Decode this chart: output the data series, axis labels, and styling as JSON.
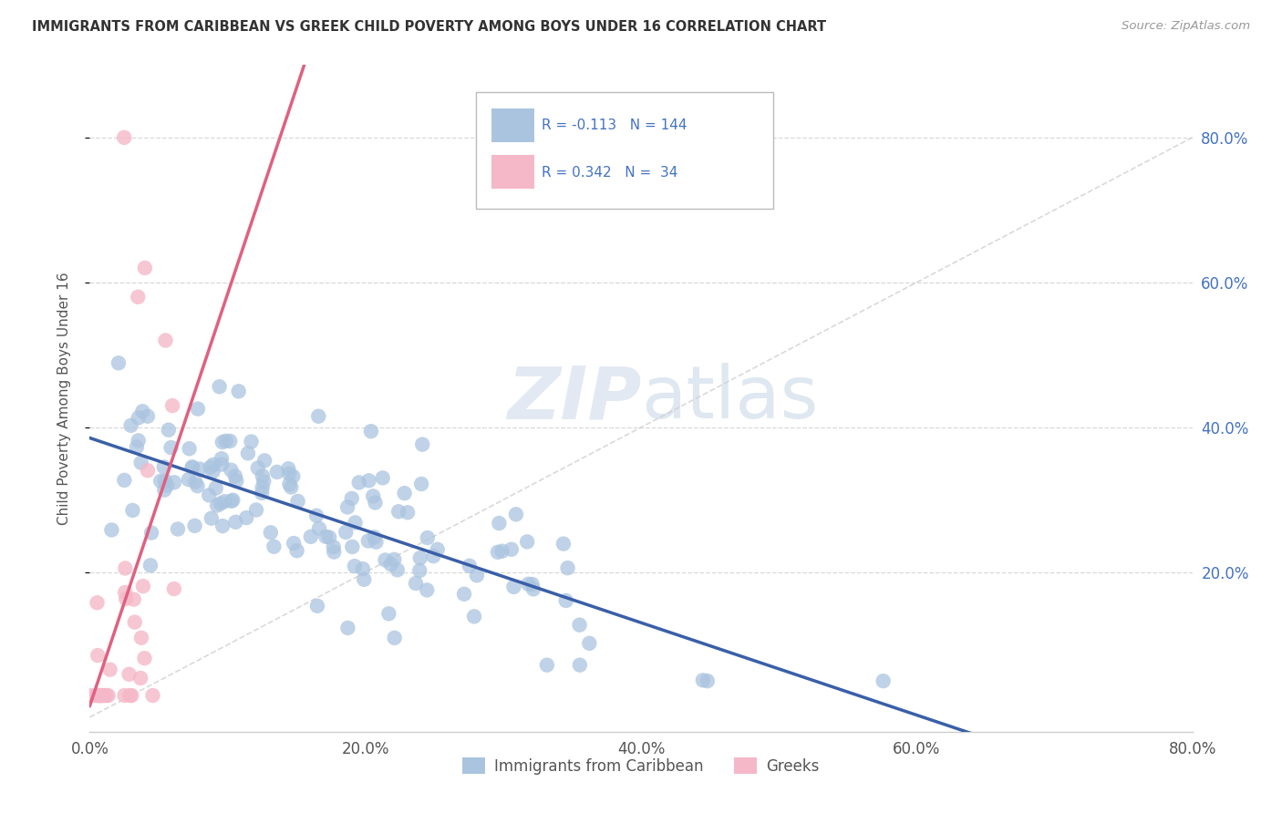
{
  "title": "IMMIGRANTS FROM CARIBBEAN VS GREEK CHILD POVERTY AMONG BOYS UNDER 16 CORRELATION CHART",
  "source": "Source: ZipAtlas.com",
  "ylabel": "Child Poverty Among Boys Under 16",
  "xlim": [
    0.0,
    0.8
  ],
  "ylim": [
    -0.02,
    0.9
  ],
  "xticks": [
    0.0,
    0.2,
    0.4,
    0.6,
    0.8
  ],
  "yticks": [
    0.2,
    0.4,
    0.6,
    0.8
  ],
  "xticklabels": [
    "0.0%",
    "20.0%",
    "40.0%",
    "60.0%",
    "80.0%"
  ],
  "yticklabels": [
    "20.0%",
    "40.0%",
    "60.0%",
    "80.0%"
  ],
  "legend_labels": [
    "Immigrants from Caribbean",
    "Greeks"
  ],
  "watermark_zip": "ZIP",
  "watermark_atlas": "atlas",
  "blue_R": -0.113,
  "blue_N": 144,
  "pink_R": 0.342,
  "pink_N": 34,
  "blue_color": "#aac4df",
  "pink_color": "#f5b8c8",
  "blue_line_color": "#3a5fa8",
  "pink_line_color": "#e06080",
  "diag_line_color": "#d0d0d0"
}
